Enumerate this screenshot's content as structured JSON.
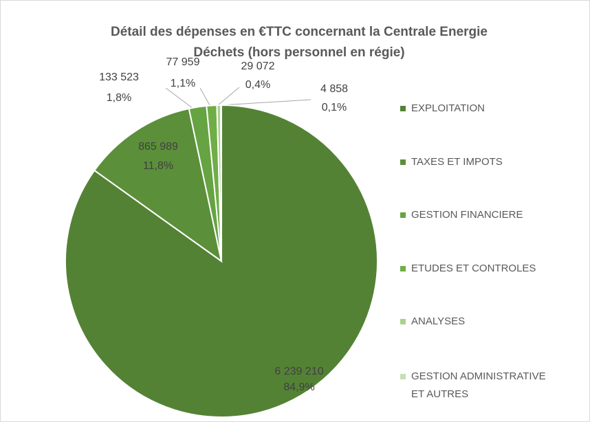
{
  "chart_data": {
    "type": "pie",
    "title": [
      "Détail des dépenses en €TTC concernant la Centrale Energie",
      "Déchets (hors personnel en régie)"
    ],
    "categories": [
      "EXPLOITATION",
      "TAXES ET IMPOTS",
      "GESTION FINANCIERE",
      "ETUDES ET CONTROLES",
      "ANALYSES",
      "GESTION ADMINISTRATIVE ET AUTRES"
    ],
    "values": [
      6239210,
      865989,
      133523,
      77959,
      29072,
      4858
    ],
    "value_labels": [
      "6 239 210",
      "865 989",
      "133 523",
      "77 959",
      "29 072",
      "4 858"
    ],
    "percent_labels": [
      "84,9%",
      "11,8%",
      "1,8%",
      "1,1%",
      "0,4%",
      "0,1%"
    ],
    "colors": [
      "#548235",
      "#5b8f3a",
      "#66a343",
      "#70ad47",
      "#a9d18e",
      "#c5e0b4"
    ],
    "legend": "right"
  }
}
